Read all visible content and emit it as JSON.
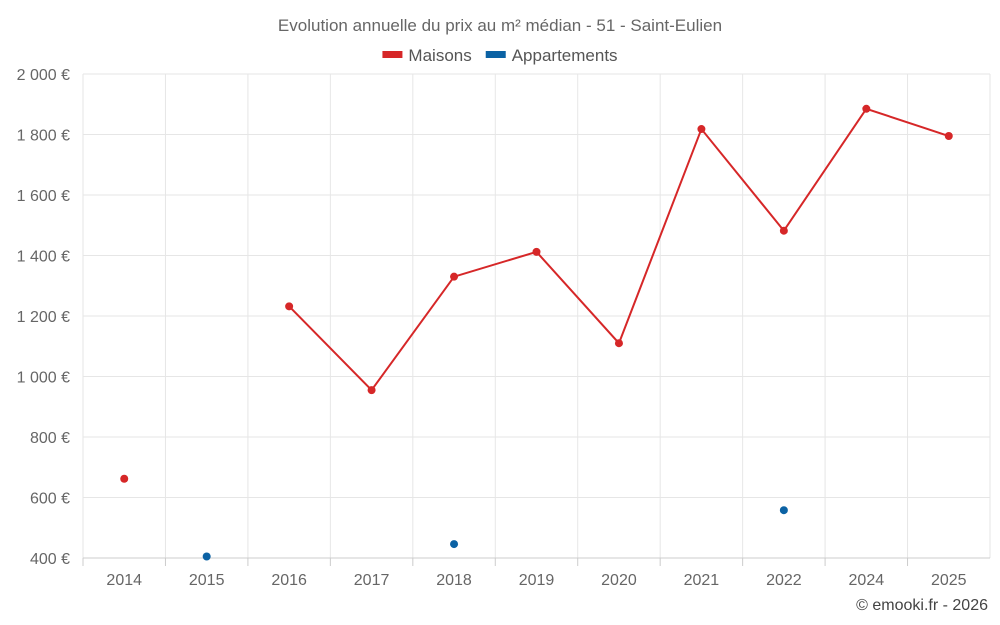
{
  "chart_data": {
    "type": "line",
    "title": "Evolution annuelle du prix au m² médian - 51 - Saint-Eulien",
    "categories": [
      "2014",
      "2015",
      "2016",
      "2017",
      "2018",
      "2019",
      "2020",
      "2021",
      "2022",
      "2024",
      "2025"
    ],
    "series": [
      {
        "name": "Maisons",
        "color": "#d62728",
        "values": [
          662,
          null,
          1232,
          955,
          1330,
          1412,
          1110,
          1818,
          1482,
          1885,
          1795
        ]
      },
      {
        "name": "Appartements",
        "color": "#0b62a4",
        "values": [
          null,
          405,
          null,
          null,
          446,
          null,
          null,
          null,
          558,
          null,
          null
        ]
      }
    ],
    "ylim": [
      400,
      2000
    ],
    "yticks": [
      400,
      600,
      800,
      1000,
      1200,
      1400,
      1600,
      1800,
      2000
    ],
    "ytick_labels": [
      "400 €",
      "600 €",
      "800 €",
      "1 000 €",
      "1 200 €",
      "1 400 €",
      "1 600 €",
      "1 800 €",
      "2 000 €"
    ],
    "grid": true,
    "legend_position": "top-center",
    "xlabel": "",
    "ylabel": ""
  },
  "credit": "© emooki.fr - 2026"
}
